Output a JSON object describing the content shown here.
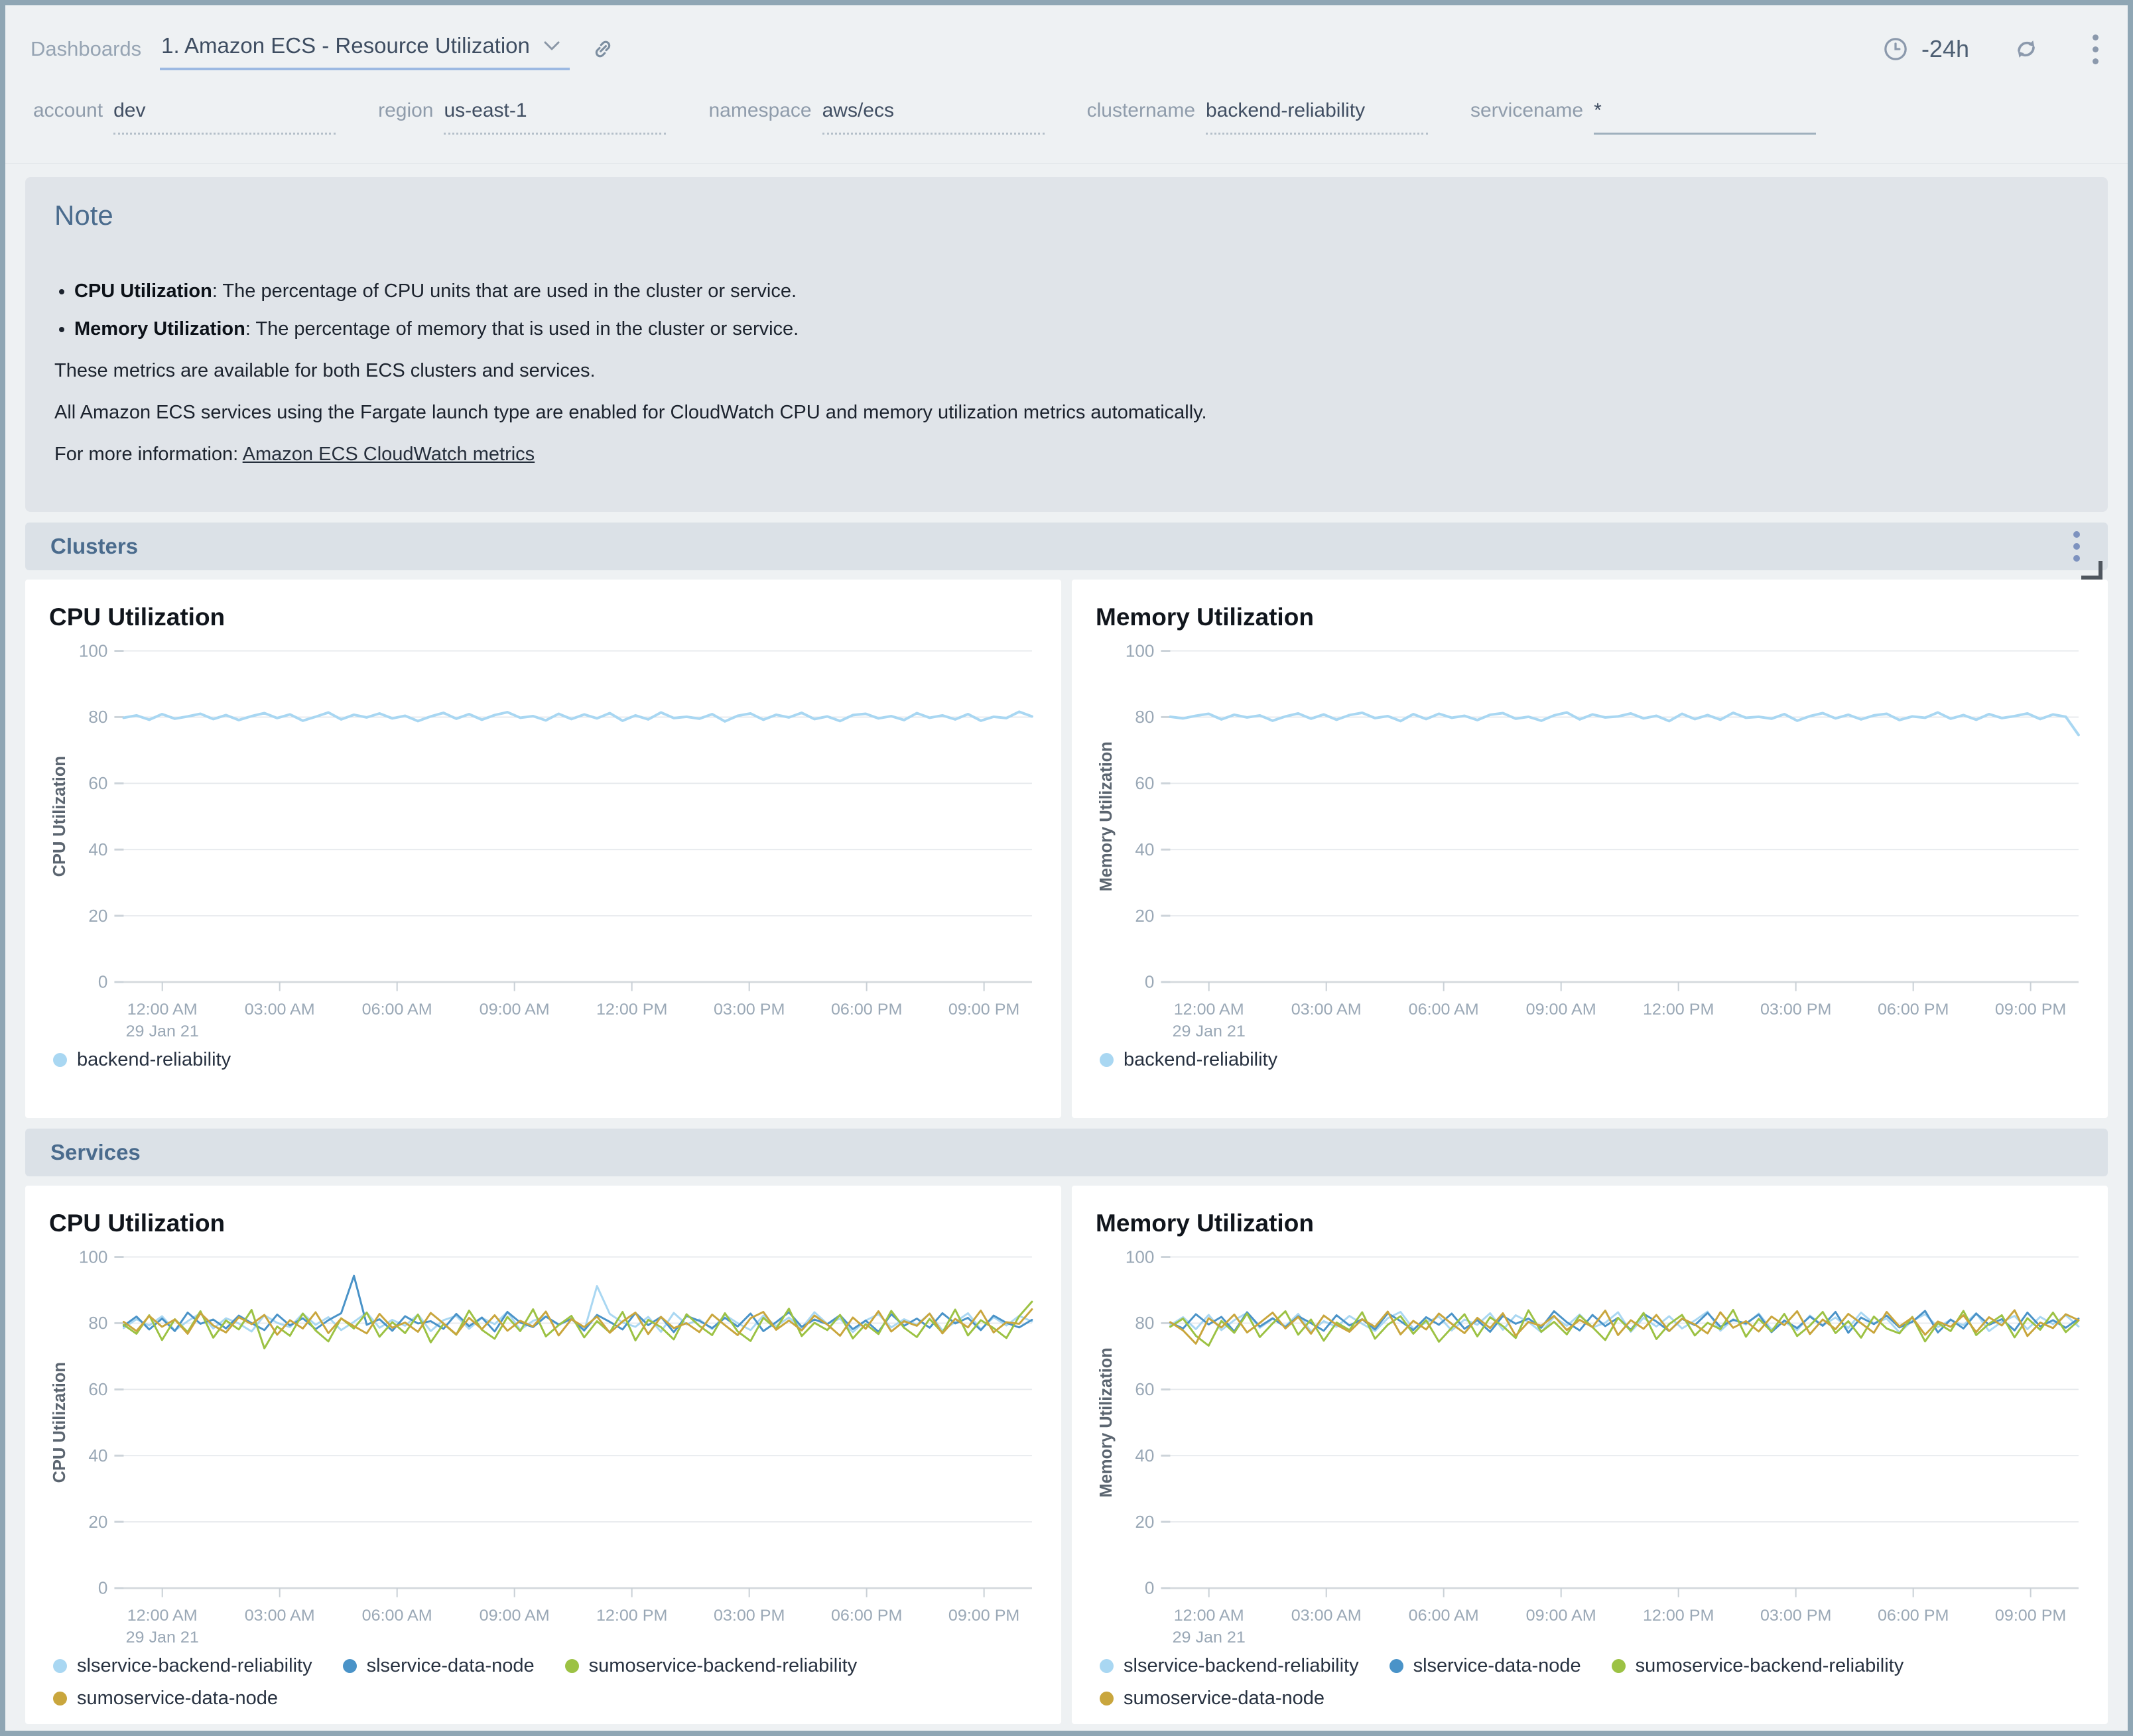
{
  "header": {
    "breadcrumb": "Dashboards",
    "title": "1. Amazon ECS - Resource Utilization",
    "time_range": "-24h"
  },
  "filters": [
    {
      "label": "account",
      "value": "dev"
    },
    {
      "label": "region",
      "value": "us-east-1"
    },
    {
      "label": "namespace",
      "value": "aws/ecs"
    },
    {
      "label": "clustername",
      "value": "backend-reliability"
    },
    {
      "label": "servicename",
      "value": "*"
    }
  ],
  "note": {
    "heading": "Note",
    "bullets": [
      {
        "term": "CPU Utilization",
        "desc": ": The percentage of CPU units that are used in the cluster or service."
      },
      {
        "term": "Memory Utilization",
        "desc": ": The percentage of memory that is used in the cluster or service."
      }
    ],
    "paragraphs": [
      "These metrics are available for both ECS clusters and services.",
      "All Amazon ECS services using the Fargate launch type are enabled for CloudWatch CPU and memory utilization metrics automatically."
    ],
    "link_prefix": "For more information: ",
    "link_text": "Amazon ECS CloudWatch metrics"
  },
  "sections": [
    {
      "title": "Clusters"
    },
    {
      "title": "Services"
    }
  ],
  "colors": {
    "light_blue": "#a9d7f2",
    "blue": "#4a93c8",
    "green": "#9cc244",
    "gold": "#c9a63d",
    "accent_underline": "#9cb9e2"
  },
  "chart_data": [
    {
      "type": "line",
      "section": "Clusters",
      "title": "CPU Utilization",
      "ylabel": "CPU Utilization",
      "ylim": [
        0,
        100
      ],
      "yticks": [
        0,
        20,
        40,
        60,
        80,
        100
      ],
      "grid": true,
      "legend_position": "bottom",
      "x_ticks": [
        "12:00 AM",
        "03:00 AM",
        "06:00 AM",
        "09:00 AM",
        "12:00 PM",
        "03:00 PM",
        "06:00 PM",
        "09:00 PM"
      ],
      "x_date": "29 Jan 21",
      "series": [
        {
          "name": "backend-reliability",
          "color": "#a9d7f2",
          "values": [
            79.8,
            80.5,
            79.2,
            80.9,
            79.5,
            80.2,
            81,
            79.4,
            80.6,
            79.1,
            80.3,
            81.2,
            79.7,
            80.8,
            78.9,
            80.1,
            81.4,
            79.3,
            80.7,
            79.9,
            81.1,
            79.6,
            80.4,
            78.8,
            80.2,
            81.3,
            79.5,
            80.9,
            79.2,
            80.6,
            81.5,
            79.8,
            80.3,
            79,
            81,
            79.4,
            80.8,
            79.6,
            81.2,
            78.9,
            80.5,
            79.3,
            81.4,
            79.7,
            80.1,
            79.5,
            80.9,
            78.7,
            80.4,
            81.1,
            79.2,
            80.7,
            79.9,
            81.3,
            79.4,
            80.2,
            78.8,
            80.6,
            81,
            79.6,
            80.3,
            79.1,
            81.2,
            79.8,
            80.5,
            79.3,
            80.9,
            78.9,
            80.1,
            79.7,
            81.6,
            80.2
          ]
        }
      ]
    },
    {
      "type": "line",
      "section": "Clusters",
      "title": "Memory Utilization",
      "ylabel": "Memory Utilization",
      "ylim": [
        0,
        100
      ],
      "yticks": [
        0,
        20,
        40,
        60,
        80,
        100
      ],
      "grid": true,
      "legend_position": "bottom",
      "x_ticks": [
        "12:00 AM",
        "03:00 AM",
        "06:00 AM",
        "09:00 AM",
        "12:00 PM",
        "03:00 PM",
        "06:00 PM",
        "09:00 PM"
      ],
      "x_date": "29 Jan 21",
      "series": [
        {
          "name": "backend-reliability",
          "color": "#a9d7f2",
          "values": [
            80.1,
            79.6,
            80.4,
            81,
            79.3,
            80.7,
            79.9,
            80.5,
            78.9,
            80.2,
            81.1,
            79.5,
            80.8,
            79.2,
            80.6,
            81.3,
            79.7,
            80.3,
            78.8,
            80.9,
            79.4,
            81,
            79.8,
            80.4,
            79.1,
            80.7,
            81.2,
            79.5,
            80.1,
            78.9,
            80.5,
            81.4,
            79.3,
            80.8,
            79.9,
            80.2,
            81.1,
            79.6,
            80.4,
            78.8,
            81,
            79.4,
            80.6,
            79.2,
            81.3,
            79.8,
            80.1,
            79.5,
            80.9,
            78.9,
            80.3,
            81.2,
            79.6,
            80.7,
            79.3,
            80.5,
            81,
            79.1,
            80.2,
            79.8,
            81.4,
            79.5,
            80.6,
            79.2,
            80.9,
            79.7,
            80.3,
            81.1,
            79.4,
            80.8,
            80.1,
            74.6
          ]
        }
      ]
    },
    {
      "type": "line",
      "section": "Services",
      "title": "CPU Utilization",
      "ylabel": "CPU Utilization",
      "ylim": [
        0,
        100
      ],
      "yticks": [
        0,
        20,
        40,
        60,
        80,
        100
      ],
      "grid": true,
      "legend_position": "bottom",
      "x_ticks": [
        "12:00 AM",
        "03:00 AM",
        "06:00 AM",
        "09:00 AM",
        "12:00 PM",
        "03:00 PM",
        "06:00 PM",
        "09:00 PM"
      ],
      "x_date": "29 Jan 21",
      "series": [
        {
          "name": "slservice-backend-reliability",
          "color": "#a9d7f2",
          "values": [
            78.5,
            81.2,
            79.3,
            82.1,
            77.8,
            80.6,
            83,
            78.4,
            81.5,
            79.9,
            77.5,
            82.4,
            80.1,
            78.8,
            82.9,
            79.5,
            81.8,
            77.9,
            80.4,
            83.2,
            78.6,
            81,
            79.2,
            82.6,
            77.6,
            80.9,
            82.2,
            78.3,
            81.6,
            79.7,
            83.4,
            78,
            80.7,
            82,
            79.4,
            81.3,
            77.7,
            91.2,
            82.8,
            80.2,
            78.9,
            81.9,
            77.4,
            83.1,
            79.6,
            81.1,
            78.2,
            82.5,
            80,
            77.9,
            82.3,
            79.1,
            81.7,
            78.5,
            83.3,
            79.8,
            81.4,
            77.3,
            80.8,
            82.7,
            78.7,
            81.2,
            79.5,
            82.9,
            77.8,
            80.3,
            83,
            78.1,
            81.8,
            79.3,
            82.2,
            80.5
          ]
        },
        {
          "name": "slservice-data-node",
          "color": "#4a93c8",
          "values": [
            79.2,
            82,
            78.1,
            81.4,
            77.6,
            83.2,
            79.8,
            81.1,
            78.4,
            82.3,
            80,
            77.9,
            82.6,
            79.3,
            81.5,
            78.2,
            80.9,
            83,
            94.3,
            79.5,
            81.2,
            77.7,
            82.1,
            79.9,
            80.6,
            78.3,
            82.8,
            79.1,
            81.7,
            77.5,
            83.4,
            80.2,
            78.8,
            82,
            79.6,
            81.3,
            77.8,
            82.5,
            80.4,
            78.1,
            83.1,
            79.4,
            81.9,
            77.3,
            82.2,
            80.7,
            78.5,
            81.6,
            79,
            82.9,
            77.6,
            80.3,
            83.3,
            78.9,
            81.1,
            79.7,
            82.4,
            78.2,
            80.8,
            77.4,
            82.7,
            79.2,
            81.4,
            78.6,
            83,
            79.9,
            81.6,
            77.9,
            82.3,
            80.1,
            78.7,
            81
          ]
        },
        {
          "name": "sumoservice-backend-reliability",
          "color": "#9cc244",
          "values": [
            79.5,
            76.8,
            82.4,
            74.9,
            81.2,
            77.3,
            83.6,
            75.6,
            80.8,
            78.1,
            84,
            72.4,
            79,
            76.2,
            82.9,
            77.8,
            74.5,
            81.5,
            78.4,
            83.2,
            75.9,
            80.3,
            77,
            82.6,
            74.2,
            79.8,
            76.5,
            83.8,
            78,
            75.3,
            81.9,
            77.6,
            84.2,
            76,
            79.4,
            82.2,
            75.7,
            80.6,
            77.2,
            83.4,
            74.8,
            81,
            78.8,
            75.1,
            82.7,
            79.2,
            76.4,
            83,
            77.5,
            74.6,
            81.6,
            78.3,
            84.4,
            76.1,
            80.1,
            77.9,
            82.5,
            75.4,
            79.7,
            76.7,
            83.7,
            78.6,
            75.8,
            81.3,
            77.1,
            84.1,
            76.3,
            80.9,
            78.5,
            75.5,
            82.1,
            86.5
          ]
        },
        {
          "name": "sumoservice-data-node",
          "color": "#c9a63d",
          "values": [
            80.4,
            77.6,
            82.2,
            78.9,
            81.1,
            76.8,
            83,
            79.3,
            77.2,
            81.8,
            79.7,
            82.5,
            76.5,
            80.9,
            78.4,
            83.3,
            77,
            81.4,
            79.1,
            76.9,
            82.8,
            78.6,
            80.2,
            77.4,
            83.1,
            79.9,
            76.6,
            81.6,
            78.2,
            82.4,
            77.7,
            80.7,
            79,
            83.5,
            76.3,
            81.2,
            78.8,
            82,
            77.1,
            80.5,
            83.2,
            76.7,
            81.9,
            78.5,
            80,
            77.3,
            82.6,
            79.4,
            76.4,
            81.5,
            83.4,
            78,
            80.8,
            77.8,
            82.3,
            79.6,
            76.2,
            81.7,
            78.3,
            83.6,
            77.5,
            80.6,
            79.2,
            82.9,
            76.9,
            81.3,
            78.7,
            83.8,
            77.2,
            80.3,
            79.8,
            84.2
          ]
        }
      ]
    },
    {
      "type": "line",
      "section": "Services",
      "title": "Memory Utilization",
      "ylabel": "Memory Utilization",
      "ylim": [
        0,
        100
      ],
      "yticks": [
        0,
        20,
        40,
        60,
        80,
        100
      ],
      "grid": true,
      "legend_position": "bottom",
      "x_ticks": [
        "12:00 AM",
        "03:00 AM",
        "06:00 AM",
        "09:00 AM",
        "12:00 PM",
        "03:00 PM",
        "06:00 PM",
        "09:00 PM"
      ],
      "x_date": "29 Jan 21",
      "series": [
        {
          "name": "slservice-backend-reliability",
          "color": "#a9d7f2",
          "values": [
            79.4,
            81.8,
            78.2,
            82.5,
            77.9,
            80.9,
            83.1,
            78.6,
            81.3,
            79.1,
            82.8,
            77.5,
            80.6,
            78.9,
            82.2,
            79.8,
            77.6,
            81.5,
            83.4,
            78.3,
            80.2,
            82,
            77.8,
            81.1,
            79.5,
            83,
            78,
            82.4,
            80.4,
            77.3,
            81.9,
            79.2,
            82.6,
            78.7,
            80.1,
            83.3,
            77.4,
            81.6,
            79,
            82.1,
            78.4,
            80.8,
            83.5,
            77.7,
            81.2,
            79.6,
            82.9,
            78.1,
            80.5,
            77.9,
            82.3,
            79.3,
            81.7,
            78.5,
            83.2,
            79.9,
            81.4,
            77.2,
            80.7,
            82.7,
            78.8,
            81,
            79.4,
            83,
            77.6,
            80.4,
            82.2,
            78.2,
            81.9,
            79.7,
            82.4,
            79
          ]
        },
        {
          "name": "slservice-data-node",
          "color": "#4a93c8",
          "values": [
            80.2,
            78.4,
            82.7,
            79.6,
            81.9,
            77.5,
            83.3,
            79,
            81.5,
            78.8,
            82.1,
            80,
            77.7,
            82.4,
            79.3,
            81.2,
            78.1,
            83,
            80.6,
            77.9,
            81.8,
            79.5,
            82.9,
            78.3,
            80.9,
            77.4,
            82.2,
            79.8,
            81.4,
            78.6,
            83.6,
            80.3,
            77.8,
            82.5,
            79.1,
            81.6,
            78,
            82.8,
            80.5,
            77.6,
            81.3,
            79.4,
            83.1,
            78.9,
            81,
            79.9,
            82.6,
            77.3,
            80.8,
            78.5,
            82,
            79.2,
            83.4,
            77.1,
            81.7,
            79.7,
            82.3,
            78.7,
            80.4,
            83.7,
            77.2,
            81.1,
            78.4,
            82.9,
            79.5,
            81.2,
            77.8,
            83.2,
            79,
            80.9,
            78.6,
            81.4
          ]
        },
        {
          "name": "sumoservice-backend-reliability",
          "color": "#9cc244",
          "values": [
            78.9,
            81.4,
            76.2,
            73.2,
            80.7,
            77.1,
            82.9,
            75.8,
            79.9,
            83.6,
            76.5,
            81.1,
            74.7,
            80.2,
            77.9,
            83.3,
            75.3,
            79.5,
            82.1,
            76.8,
            80.9,
            74.4,
            78.6,
            82.7,
            76,
            81.8,
            79.1,
            75.5,
            83.9,
            77.4,
            80.4,
            76.6,
            82.3,
            78.8,
            74.9,
            81.6,
            77.7,
            83.1,
            75.2,
            79.7,
            82.5,
            76.3,
            80.1,
            78.2,
            84,
            75.9,
            81.3,
            77.5,
            82.8,
            76.1,
            79.3,
            83.4,
            77,
            80.6,
            75.6,
            82,
            78.4,
            76.9,
            81.9,
            74.5,
            80,
            77.6,
            83.7,
            76.4,
            79.8,
            82.4,
            75.7,
            81.5,
            78,
            83.2,
            77.3,
            80.8
          ]
        },
        {
          "name": "sumoservice-data-node",
          "color": "#c9a63d",
          "values": [
            80.3,
            77.8,
            73.8,
            81.5,
            78.7,
            82.6,
            77.2,
            80.1,
            83.2,
            78.4,
            81.9,
            76.8,
            82.3,
            79.5,
            77.4,
            81.2,
            78.9,
            83.5,
            76.6,
            80.7,
            78.1,
            82.9,
            79.8,
            77,
            81.6,
            78.5,
            83,
            76.2,
            80.4,
            79.2,
            82.2,
            77.9,
            81,
            78.8,
            83.8,
            76.4,
            80.9,
            78.3,
            82.5,
            77.6,
            81.4,
            79.6,
            76.9,
            83.3,
            78.6,
            80.6,
            77.5,
            82,
            79.4,
            83.6,
            76.7,
            81.1,
            78.2,
            82.8,
            80,
            77.1,
            83.4,
            79,
            81.7,
            76.5,
            80.5,
            78.9,
            82.4,
            77.3,
            81.8,
            79.3,
            83.9,
            76.1,
            80.2,
            78.5,
            82.7,
            80.9
          ]
        }
      ]
    }
  ]
}
